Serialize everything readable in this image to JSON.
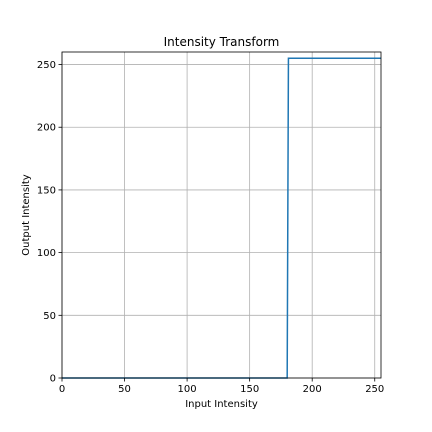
{
  "chart_data": {
    "type": "line",
    "title": "Intensity Transform",
    "xlabel": "Input Intensity",
    "ylabel": "Output Intensity",
    "xlim": [
      0,
      255
    ],
    "ylim": [
      0,
      260
    ],
    "xticks": [
      0,
      50,
      100,
      150,
      200,
      250
    ],
    "yticks": [
      0,
      50,
      100,
      150,
      200,
      250
    ],
    "grid": true,
    "series": [
      {
        "color": "#1f77b4",
        "x": [
          0,
          180,
          181,
          255
        ],
        "y": [
          0,
          0,
          255,
          255
        ]
      }
    ]
  }
}
